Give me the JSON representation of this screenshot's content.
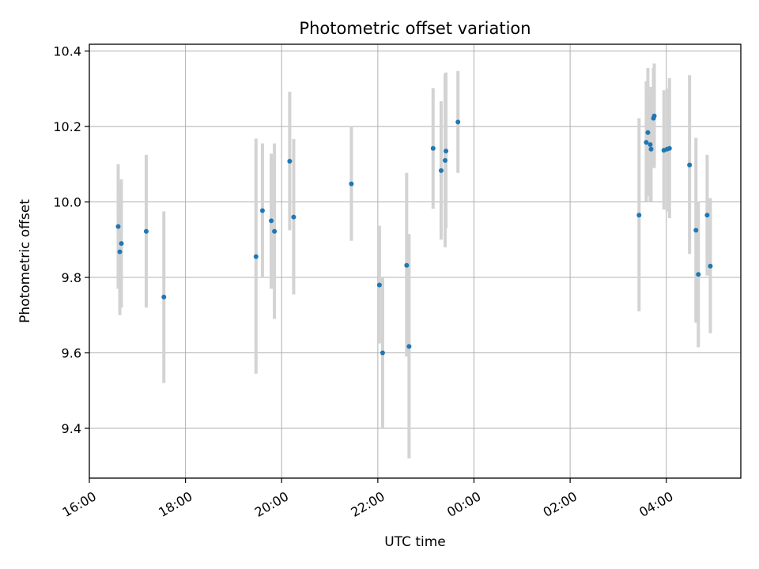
{
  "chart_data": {
    "type": "scatter",
    "title": "Photometric offset variation",
    "xlabel": "UTC time",
    "ylabel": "Photometric offset",
    "x_tick_labels": [
      "16:00",
      "18:00",
      "20:00",
      "22:00",
      "00:00",
      "02:00",
      "04:00"
    ],
    "y_ticks": [
      9.4,
      9.6,
      9.8,
      10.0,
      10.2,
      10.4
    ],
    "y_tick_labels": [
      "9.4",
      "9.6",
      "9.8",
      "10.0",
      "10.2",
      "10.4"
    ],
    "xlim_hours": [
      16.0,
      29.55
    ],
    "ylim": [
      9.268,
      10.418
    ],
    "grid": true,
    "colors": {
      "marker": "#1f77b4",
      "errorbar": "#d3d3d3",
      "grid": "#b0b0b0",
      "axes": "#000000"
    },
    "points": [
      {
        "t": "16:36",
        "y": 9.935,
        "lo": 9.77,
        "hi": 10.1
      },
      {
        "t": "16:38",
        "y": 9.868,
        "lo": 9.7,
        "hi": 10.03
      },
      {
        "t": "16:40",
        "y": 9.89,
        "lo": 9.72,
        "hi": 10.06
      },
      {
        "t": "17:11",
        "y": 9.922,
        "lo": 9.72,
        "hi": 10.125
      },
      {
        "t": "17:33",
        "y": 9.748,
        "lo": 9.52,
        "hi": 9.975
      },
      {
        "t": "19:28",
        "y": 9.855,
        "lo": 9.545,
        "hi": 10.168
      },
      {
        "t": "19:36",
        "y": 9.977,
        "lo": 9.8,
        "hi": 10.155
      },
      {
        "t": "19:47",
        "y": 9.95,
        "lo": 9.77,
        "hi": 10.128
      },
      {
        "t": "19:51",
        "y": 9.922,
        "lo": 9.69,
        "hi": 10.155
      },
      {
        "t": "20:10",
        "y": 10.108,
        "lo": 9.925,
        "hi": 10.292
      },
      {
        "t": "20:15",
        "y": 9.96,
        "lo": 9.755,
        "hi": 10.167
      },
      {
        "t": "21:27",
        "y": 10.048,
        "lo": 9.897,
        "hi": 10.2
      },
      {
        "t": "22:02",
        "y": 9.78,
        "lo": 9.625,
        "hi": 9.937
      },
      {
        "t": "22:06",
        "y": 9.6,
        "lo": 9.4,
        "hi": 9.8
      },
      {
        "t": "22:36",
        "y": 9.832,
        "lo": 9.59,
        "hi": 10.077
      },
      {
        "t": "22:39",
        "y": 9.617,
        "lo": 9.32,
        "hi": 9.915
      },
      {
        "t": "23:09",
        "y": 10.142,
        "lo": 9.982,
        "hi": 10.302
      },
      {
        "t": "23:19",
        "y": 10.083,
        "lo": 9.9,
        "hi": 10.267
      },
      {
        "t": "23:24",
        "y": 10.11,
        "lo": 9.88,
        "hi": 10.34
      },
      {
        "t": "23:25",
        "y": 10.135,
        "lo": 9.93,
        "hi": 10.343
      },
      {
        "t": "23:40",
        "y": 10.212,
        "lo": 10.077,
        "hi": 10.347
      },
      {
        "t": "03:26",
        "y": 9.965,
        "lo": 9.71,
        "hi": 10.222
      },
      {
        "t": "03:35",
        "y": 10.158,
        "lo": 10.0,
        "hi": 10.32
      },
      {
        "t": "03:37",
        "y": 10.184,
        "lo": 10.015,
        "hi": 10.355
      },
      {
        "t": "03:40",
        "y": 10.152,
        "lo": 10.0,
        "hi": 10.305
      },
      {
        "t": "03:41",
        "y": 10.14,
        "lo": 10.0,
        "hi": 10.28
      },
      {
        "t": "03:44",
        "y": 10.222,
        "lo": 10.09,
        "hi": 10.355
      },
      {
        "t": "03:45",
        "y": 10.228,
        "lo": 10.09,
        "hi": 10.367
      },
      {
        "t": "03:57",
        "y": 10.137,
        "lo": 9.98,
        "hi": 10.296
      },
      {
        "t": "04:01",
        "y": 10.14,
        "lo": 9.975,
        "hi": 10.3
      },
      {
        "t": "04:04",
        "y": 10.142,
        "lo": 9.957,
        "hi": 10.328
      },
      {
        "t": "04:29",
        "y": 10.098,
        "lo": 9.862,
        "hi": 10.336
      },
      {
        "t": "04:37",
        "y": 9.925,
        "lo": 9.68,
        "hi": 10.17
      },
      {
        "t": "04:40",
        "y": 9.808,
        "lo": 9.615,
        "hi": 10.0
      },
      {
        "t": "04:51",
        "y": 9.965,
        "lo": 9.805,
        "hi": 10.125
      },
      {
        "t": "04:55",
        "y": 9.83,
        "lo": 9.652,
        "hi": 10.01
      }
    ]
  }
}
